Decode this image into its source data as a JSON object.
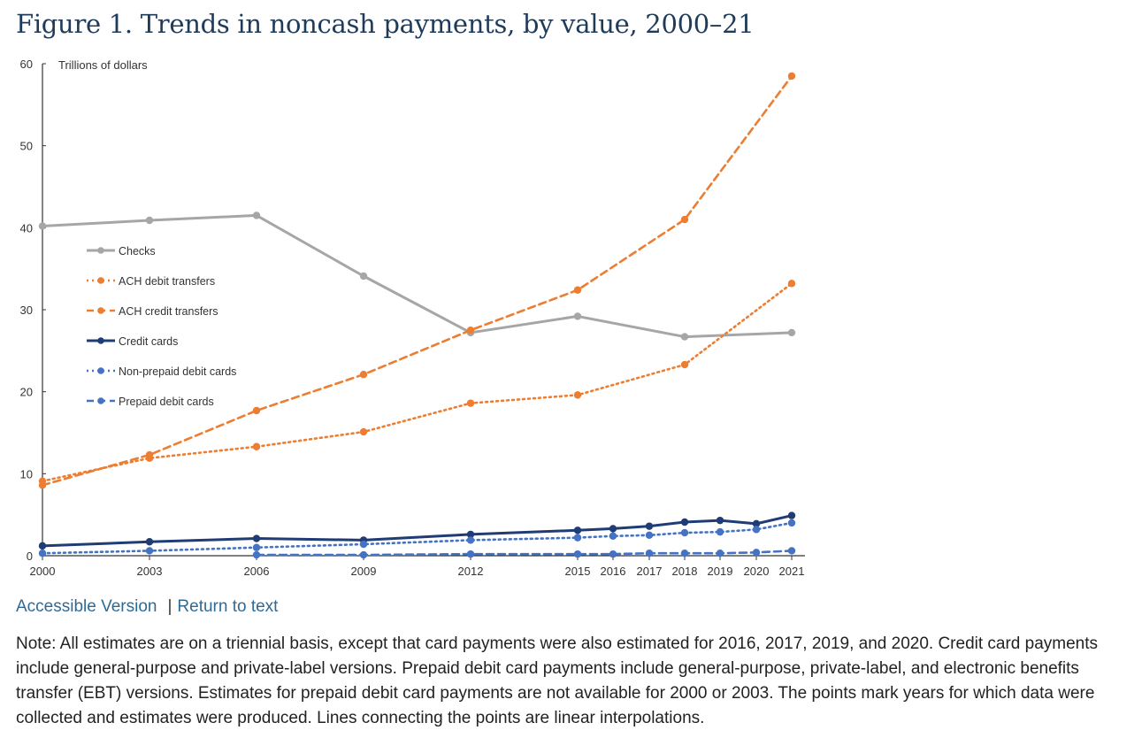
{
  "title": "Figure 1. Trends in noncash payments, by value, 2000–21",
  "links": {
    "accessible": "Accessible Version",
    "separator": "|",
    "return": "Return to text"
  },
  "note": "Note: All estimates are on a triennial basis, except that card payments were also estimated for 2016, 2017, 2019, and 2020. Credit card payments include general-purpose and private-label versions. Prepaid debit card payments include general-purpose, private-label, and electronic benefits transfer (EBT) versions. Estimates for prepaid debit card payments are not available for 2000 or 2003. The points mark years for which data were collected and estimates were produced. Lines connecting the points are linear interpolations.",
  "chart_data": {
    "type": "line",
    "ylabel": "Trillions of dollars",
    "ylim": [
      0,
      60
    ],
    "yticks": [
      0,
      10,
      20,
      30,
      40,
      50,
      60
    ],
    "xticks": [
      2000,
      2003,
      2006,
      2009,
      2012,
      2015,
      2016,
      2017,
      2018,
      2019,
      2020,
      2021
    ],
    "grid": false,
    "legend_position": "left",
    "series": [
      {
        "name": "Checks",
        "color": "#a6a6a6",
        "dash": "solid",
        "points": [
          [
            2000,
            40.2
          ],
          [
            2003,
            40.9
          ],
          [
            2006,
            41.5
          ],
          [
            2009,
            34.1
          ],
          [
            2012,
            27.2
          ],
          [
            2015,
            29.2
          ],
          [
            2018,
            26.7
          ],
          [
            2021,
            27.2
          ]
        ]
      },
      {
        "name": "ACH debit transfers",
        "color": "#ed7d31",
        "dash": "dotted",
        "points": [
          [
            2000,
            9.1
          ],
          [
            2003,
            11.9
          ],
          [
            2006,
            13.3
          ],
          [
            2009,
            15.1
          ],
          [
            2012,
            18.6
          ],
          [
            2015,
            19.6
          ],
          [
            2018,
            23.3
          ],
          [
            2021,
            33.2
          ]
        ]
      },
      {
        "name": "ACH credit transfers",
        "color": "#ed7d31",
        "dash": "dashed",
        "points": [
          [
            2000,
            8.6
          ],
          [
            2003,
            12.3
          ],
          [
            2006,
            17.7
          ],
          [
            2009,
            22.1
          ],
          [
            2012,
            27.5
          ],
          [
            2015,
            32.4
          ],
          [
            2018,
            41.0
          ],
          [
            2021,
            58.5
          ]
        ]
      },
      {
        "name": "Credit cards",
        "color": "#1f3c74",
        "dash": "solid",
        "points": [
          [
            2000,
            1.2
          ],
          [
            2003,
            1.7
          ],
          [
            2006,
            2.1
          ],
          [
            2009,
            1.9
          ],
          [
            2012,
            2.6
          ],
          [
            2015,
            3.1
          ],
          [
            2016,
            3.3
          ],
          [
            2017,
            3.6
          ],
          [
            2018,
            4.1
          ],
          [
            2019,
            4.3
          ],
          [
            2020,
            3.9
          ],
          [
            2021,
            4.9
          ]
        ]
      },
      {
        "name": "Non-prepaid debit cards",
        "color": "#4472c4",
        "dash": "dotted",
        "points": [
          [
            2000,
            0.3
          ],
          [
            2003,
            0.6
          ],
          [
            2006,
            1.0
          ],
          [
            2009,
            1.4
          ],
          [
            2012,
            1.9
          ],
          [
            2015,
            2.2
          ],
          [
            2016,
            2.4
          ],
          [
            2017,
            2.5
          ],
          [
            2018,
            2.8
          ],
          [
            2019,
            2.9
          ],
          [
            2020,
            3.2
          ],
          [
            2021,
            4.0
          ]
        ]
      },
      {
        "name": "Prepaid debit cards",
        "color": "#4472c4",
        "dash": "dashed",
        "points": [
          [
            2006,
            0.1
          ],
          [
            2009,
            0.1
          ],
          [
            2012,
            0.2
          ],
          [
            2015,
            0.2
          ],
          [
            2016,
            0.2
          ],
          [
            2017,
            0.3
          ],
          [
            2018,
            0.3
          ],
          [
            2019,
            0.3
          ],
          [
            2020,
            0.4
          ],
          [
            2021,
            0.6
          ]
        ]
      }
    ]
  }
}
